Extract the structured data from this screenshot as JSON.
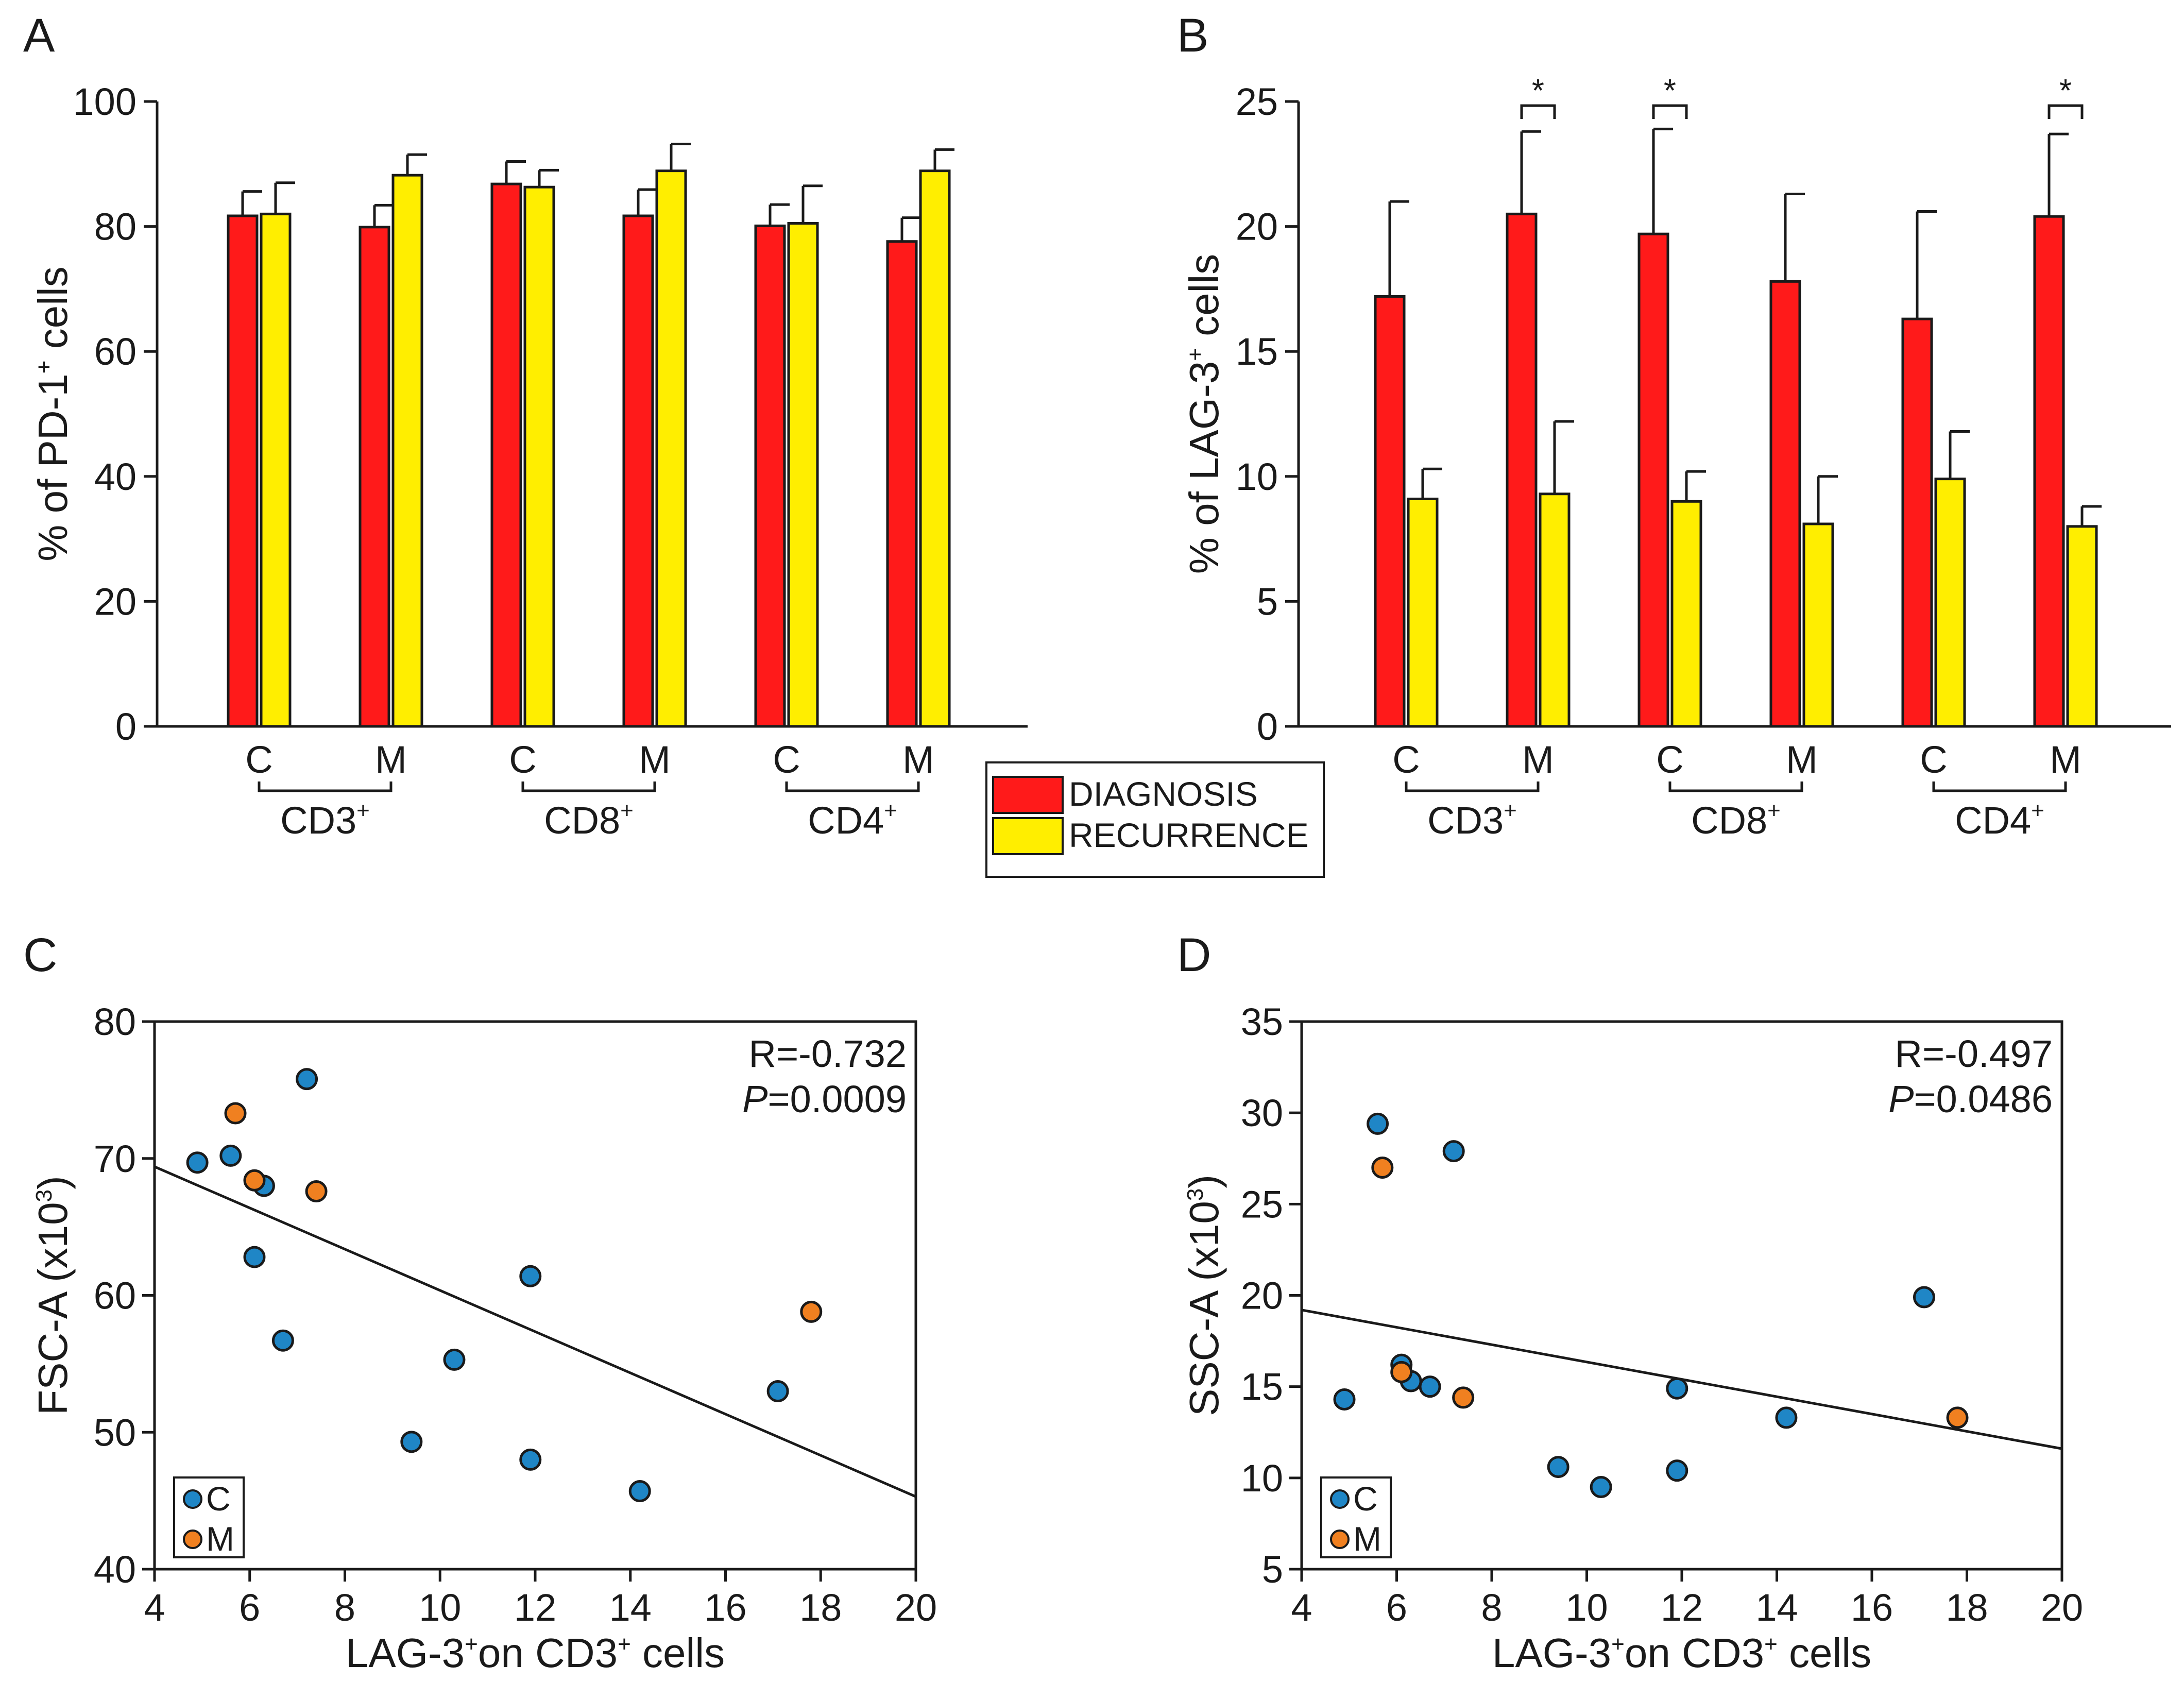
{
  "legend": {
    "entries": [
      {
        "label": "DIAGNOSIS",
        "color": "#ff1a1a"
      },
      {
        "label": "RECURRENCE",
        "color": "#ffee00"
      }
    ]
  },
  "chart_data": [
    {
      "panel": "A",
      "type": "bar",
      "ylabel": {
        "pre": "% of PD-1",
        "sup": "+",
        "post": " cells"
      },
      "ylim": [
        0,
        100
      ],
      "yticks": [
        0,
        20,
        40,
        60,
        80,
        100
      ],
      "categories": [
        "C",
        "M",
        "C",
        "M",
        "C",
        "M"
      ],
      "groups": [
        {
          "label": "CD3",
          "sup": "+"
        },
        {
          "label": "CD8",
          "sup": "+"
        },
        {
          "label": "CD4",
          "sup": "+"
        }
      ],
      "series": [
        {
          "name": "DIAGNOSIS",
          "values": [
            81.7,
            79.9,
            86.8,
            81.7,
            80.1,
            77.6
          ],
          "errors": [
            3.9,
            3.5,
            3.6,
            4.2,
            3.4,
            3.8
          ]
        },
        {
          "name": "RECURRENCE",
          "values": [
            82.0,
            88.2,
            86.3,
            88.9,
            80.5,
            88.9
          ],
          "errors": [
            5.0,
            3.3,
            2.7,
            4.3,
            6.0,
            3.4
          ]
        }
      ],
      "significance": []
    },
    {
      "panel": "B",
      "type": "bar",
      "ylabel": {
        "pre": "% of LAG-3",
        "sup": "+",
        "post": " cells"
      },
      "ylim": [
        0,
        25
      ],
      "yticks": [
        0,
        5,
        10,
        15,
        20,
        25
      ],
      "categories": [
        "C",
        "M",
        "C",
        "M",
        "C",
        "M"
      ],
      "groups": [
        {
          "label": "CD3",
          "sup": "+"
        },
        {
          "label": "CD8",
          "sup": "+"
        },
        {
          "label": "CD4",
          "sup": "+"
        }
      ],
      "series": [
        {
          "name": "DIAGNOSIS",
          "values": [
            17.2,
            20.5,
            19.7,
            17.8,
            16.3,
            20.4
          ],
          "errors": [
            3.8,
            3.3,
            4.2,
            3.5,
            4.3,
            3.3
          ]
        },
        {
          "name": "RECURRENCE",
          "values": [
            9.1,
            9.3,
            9.0,
            8.1,
            9.9,
            8.0
          ],
          "errors": [
            1.2,
            2.9,
            1.2,
            1.9,
            1.9,
            0.8
          ]
        }
      ],
      "significance": [
        {
          "category_index": 1,
          "label": "*"
        },
        {
          "category_index": 2,
          "label": "*"
        },
        {
          "category_index": 5,
          "label": "*"
        }
      ]
    },
    {
      "panel": "C",
      "type": "scatter",
      "ylabel": {
        "pre": "FSC-A (x10",
        "sup": "3",
        "post": ")"
      },
      "xlabel": {
        "pre": "LAG-3",
        "sup1": "+",
        "mid": "on  CD3",
        "sup2": "+",
        "post": " cells"
      },
      "xlim": [
        4,
        20
      ],
      "ylim": [
        40,
        80
      ],
      "xticks": [
        4,
        6,
        8,
        10,
        12,
        14,
        16,
        18,
        20
      ],
      "yticks": [
        40,
        50,
        60,
        70,
        80
      ],
      "stats": {
        "r": "R=-0.732",
        "p_label": "P",
        "p_value": "=0.0009"
      },
      "fit_line": {
        "x": [
          4,
          20
        ],
        "y": [
          69.4,
          45.3
        ]
      },
      "legend": [
        {
          "label": "C",
          "color": "#1f86c6"
        },
        {
          "label": "M",
          "color": "#f08020"
        }
      ],
      "series": [
        {
          "name": "C",
          "color": "#1f86c6",
          "points": [
            [
              4.9,
              69.7
            ],
            [
              5.6,
              70.2
            ],
            [
              6.3,
              68.0
            ],
            [
              7.2,
              75.8
            ],
            [
              6.1,
              62.8
            ],
            [
              6.7,
              56.7
            ],
            [
              9.4,
              49.3
            ],
            [
              10.3,
              55.3
            ],
            [
              11.9,
              61.4
            ],
            [
              11.9,
              48.0
            ],
            [
              14.2,
              45.7
            ],
            [
              17.1,
              53.0
            ]
          ]
        },
        {
          "name": "M",
          "color": "#f08020",
          "points": [
            [
              5.7,
              73.3
            ],
            [
              6.1,
              68.4
            ],
            [
              7.4,
              67.6
            ],
            [
              17.8,
              58.8
            ]
          ]
        }
      ]
    },
    {
      "panel": "D",
      "type": "scatter",
      "ylabel": {
        "pre": "SSC-A (x10",
        "sup": "3",
        "post": ")"
      },
      "xlabel": {
        "pre": "LAG-3",
        "sup1": "+",
        "mid": "on  CD3",
        "sup2": "+",
        "post": " cells"
      },
      "xlim": [
        4,
        20
      ],
      "ylim": [
        5,
        35
      ],
      "xticks": [
        4,
        6,
        8,
        10,
        12,
        14,
        16,
        18,
        20
      ],
      "yticks": [
        5,
        10,
        15,
        20,
        25,
        30,
        35
      ],
      "stats": {
        "r": "R=-0.497",
        "p_label": "P",
        "p_value": "=0.0486"
      },
      "fit_line": {
        "x": [
          4,
          20
        ],
        "y": [
          19.2,
          11.6
        ]
      },
      "legend": [
        {
          "label": "C",
          "color": "#1f86c6"
        },
        {
          "label": "M",
          "color": "#f08020"
        }
      ],
      "series": [
        {
          "name": "C",
          "color": "#1f86c6",
          "points": [
            [
              4.9,
              14.3
            ],
            [
              5.6,
              29.4
            ],
            [
              6.1,
              16.2
            ],
            [
              6.3,
              15.3
            ],
            [
              6.7,
              15.0
            ],
            [
              7.2,
              27.9
            ],
            [
              9.4,
              10.6
            ],
            [
              10.3,
              9.5
            ],
            [
              11.9,
              14.9
            ],
            [
              11.9,
              10.4
            ],
            [
              14.2,
              13.3
            ],
            [
              17.1,
              19.9
            ]
          ]
        },
        {
          "name": "M",
          "color": "#f08020",
          "points": [
            [
              5.7,
              27.0
            ],
            [
              6.1,
              15.8
            ],
            [
              7.4,
              14.4
            ],
            [
              17.8,
              13.3
            ]
          ]
        }
      ]
    }
  ]
}
